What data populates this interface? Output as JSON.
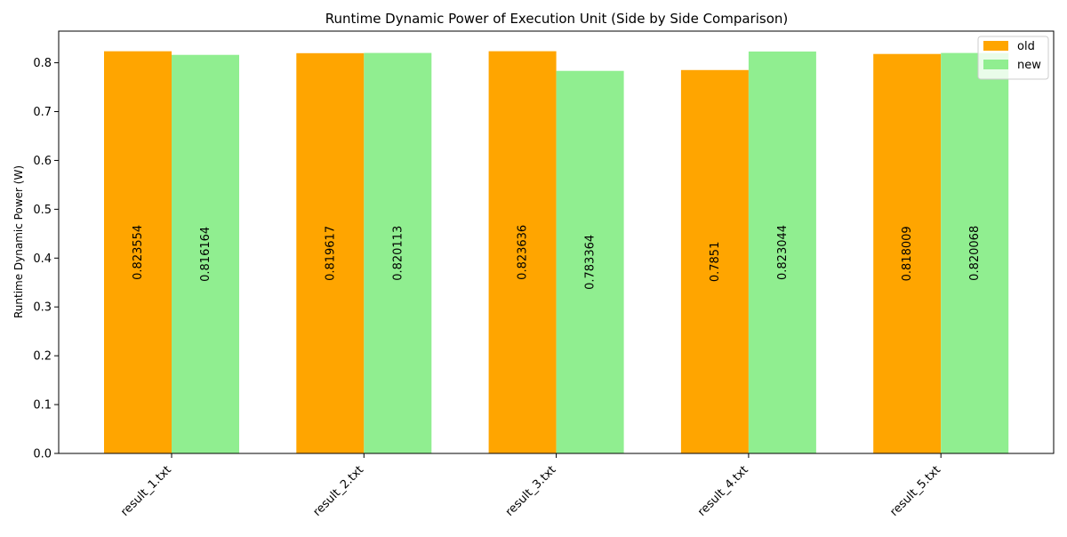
{
  "chart_data": {
    "type": "bar",
    "title": "Runtime Dynamic Power of Execution Unit (Side by Side Comparison)",
    "xlabel": "",
    "ylabel": "Runtime Dynamic Power (W)",
    "categories": [
      "result_1.txt",
      "result_2.txt",
      "result_3.txt",
      "result_4.txt",
      "result_5.txt"
    ],
    "series": [
      {
        "name": "old",
        "color": "#ffa500",
        "values": [
          0.823554,
          0.819617,
          0.823636,
          0.7851,
          0.818009
        ],
        "labels": [
          "0.823554",
          "0.819617",
          "0.823636",
          "0.7851",
          "0.818009"
        ]
      },
      {
        "name": "new",
        "color": "#90ee90",
        "values": [
          0.816164,
          0.820113,
          0.783364,
          0.823044,
          0.820068
        ],
        "labels": [
          "0.816164",
          "0.820113",
          "0.783364",
          "0.823044",
          "0.820068"
        ]
      }
    ],
    "ylim": [
      0,
      0.8648
    ],
    "yticks": [
      "0.0",
      "0.1",
      "0.2",
      "0.3",
      "0.4",
      "0.5",
      "0.6",
      "0.7",
      "0.8"
    ],
    "grid": false,
    "legend_position": "top-right"
  }
}
